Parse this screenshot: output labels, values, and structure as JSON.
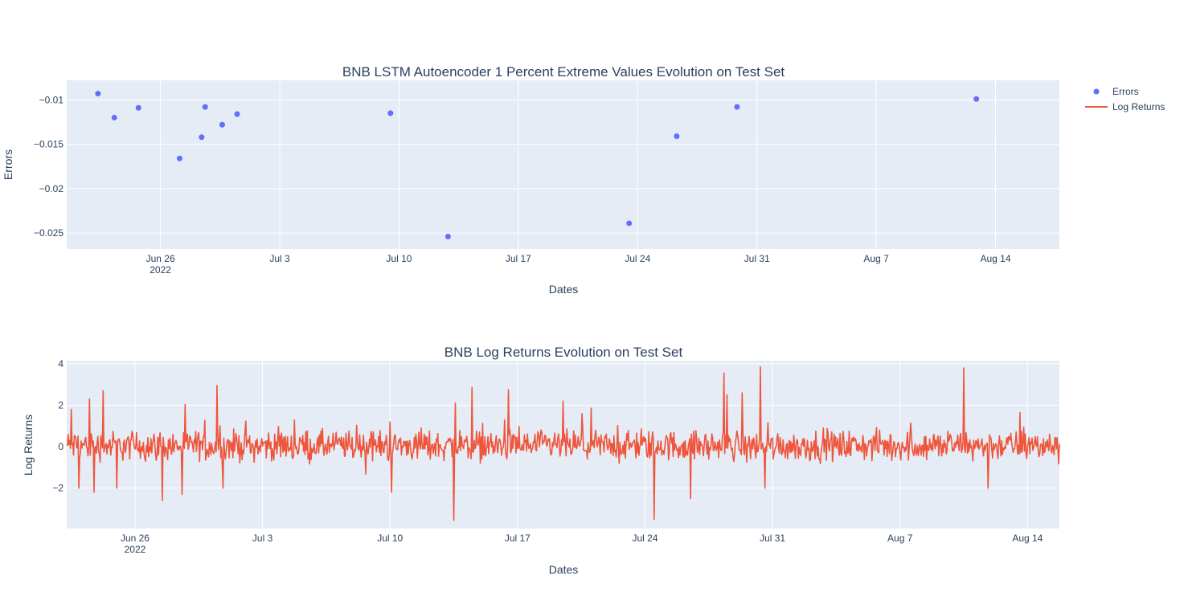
{
  "chart_data": [
    {
      "type": "scatter",
      "title": "BNB LSTM Autoencoder 1 Percent Extreme Values Evolution on Test Set",
      "xlabel": "Dates",
      "ylabel": "Errors",
      "x_range": [
        "2022-06-20T12:00",
        "2022-08-17T18:00"
      ],
      "ylim": [
        -0.0268,
        -0.0078
      ],
      "x_ticks": [
        {
          "date": "2022-06-26",
          "label": "Jun 26",
          "sub": "2022"
        },
        {
          "date": "2022-07-03",
          "label": "Jul 3",
          "sub": ""
        },
        {
          "date": "2022-07-10",
          "label": "Jul 10",
          "sub": ""
        },
        {
          "date": "2022-07-17",
          "label": "Jul 17",
          "sub": ""
        },
        {
          "date": "2022-07-24",
          "label": "Jul 24",
          "sub": ""
        },
        {
          "date": "2022-07-31",
          "label": "Jul 31",
          "sub": ""
        },
        {
          "date": "2022-08-07",
          "label": "Aug 7",
          "sub": ""
        },
        {
          "date": "2022-08-14",
          "label": "Aug 14",
          "sub": ""
        }
      ],
      "y_ticks": [
        -0.01,
        -0.015,
        -0.02,
        -0.025
      ],
      "y_tick_labels": [
        "−0.01",
        "−0.015",
        "−0.02",
        "−0.025"
      ],
      "series": [
        {
          "name": "Errors",
          "color": "#636efa",
          "points": [
            {
              "x": "2022-06-22T08:00",
              "y": -0.0093
            },
            {
              "x": "2022-06-23T07:00",
              "y": -0.012
            },
            {
              "x": "2022-06-24T17:00",
              "y": -0.0109
            },
            {
              "x": "2022-06-27T03:00",
              "y": -0.0166
            },
            {
              "x": "2022-06-28T10:00",
              "y": -0.0142
            },
            {
              "x": "2022-06-28T15:00",
              "y": -0.0108
            },
            {
              "x": "2022-06-29T15:00",
              "y": -0.0128
            },
            {
              "x": "2022-06-30T12:00",
              "y": -0.0116
            },
            {
              "x": "2022-07-09T12:00",
              "y": -0.0115
            },
            {
              "x": "2022-07-12T21:00",
              "y": -0.0254
            },
            {
              "x": "2022-07-23T12:00",
              "y": -0.0239
            },
            {
              "x": "2022-07-26T07:00",
              "y": -0.0141
            },
            {
              "x": "2022-07-29T20:00",
              "y": -0.0108
            },
            {
              "x": "2022-08-12T21:00",
              "y": -0.0099
            }
          ]
        }
      ],
      "legend": {
        "position": "top-right",
        "entries": [
          {
            "name": "Errors",
            "marker": "dot",
            "color": "#636efa"
          },
          {
            "name": "Log Returns",
            "marker": "line",
            "color": "#ef553b"
          }
        ]
      }
    },
    {
      "type": "line",
      "title": "BNB Log Returns Evolution on Test Set",
      "xlabel": "Dates",
      "ylabel": "Log Returns",
      "x_range": [
        "2022-06-22T06:00",
        "2022-08-15T18:00"
      ],
      "ylim": [
        -3.95,
        4.15
      ],
      "x_ticks": [
        {
          "date": "2022-06-26",
          "label": "Jun 26",
          "sub": "2022"
        },
        {
          "date": "2022-07-03",
          "label": "Jul 3",
          "sub": ""
        },
        {
          "date": "2022-07-10",
          "label": "Jul 10",
          "sub": ""
        },
        {
          "date": "2022-07-17",
          "label": "Jul 17",
          "sub": ""
        },
        {
          "date": "2022-07-24",
          "label": "Jul 24",
          "sub": ""
        },
        {
          "date": "2022-07-31",
          "label": "Jul 31",
          "sub": ""
        },
        {
          "date": "2022-08-07",
          "label": "Aug 7",
          "sub": ""
        },
        {
          "date": "2022-08-14",
          "label": "Aug 14",
          "sub": ""
        }
      ],
      "y_ticks": [
        4,
        2,
        0,
        -2
      ],
      "y_tick_labels": [
        "4",
        "2",
        "0",
        "−2"
      ],
      "series": [
        {
          "name": "Log Returns",
          "color": "#ef553b",
          "sampling": "hourly",
          "start": "2022-06-22T06:00",
          "end": "2022-08-15T18:00",
          "typical_range": [
            -0.8,
            0.8
          ],
          "spikes": [
            {
              "x": "2022-06-22T22:00",
              "y": -2.0
            },
            {
              "x": "2022-06-22T12:00",
              "y": 1.8
            },
            {
              "x": "2022-06-23T12:00",
              "y": 2.3
            },
            {
              "x": "2022-06-23T18:00",
              "y": -2.2
            },
            {
              "x": "2022-06-24T06:00",
              "y": 2.7
            },
            {
              "x": "2022-06-25T00:00",
              "y": -2.0
            },
            {
              "x": "2022-06-27T12:00",
              "y": -2.6
            },
            {
              "x": "2022-06-28T14:00",
              "y": -2.3
            },
            {
              "x": "2022-06-30T12:00",
              "y": 2.95
            },
            {
              "x": "2022-06-30T20:00",
              "y": -2.0
            },
            {
              "x": "2022-07-10T02:00",
              "y": -2.2
            },
            {
              "x": "2022-07-13T12:00",
              "y": -3.55
            },
            {
              "x": "2022-07-13T14:00",
              "y": 2.1
            },
            {
              "x": "2022-07-14T12:00",
              "y": 2.85
            },
            {
              "x": "2022-07-16T12:00",
              "y": 2.75
            },
            {
              "x": "2022-07-19T12:00",
              "y": 2.2
            },
            {
              "x": "2022-07-24T12:00",
              "y": -3.5
            },
            {
              "x": "2022-07-26T12:00",
              "y": -2.5
            },
            {
              "x": "2022-07-28T08:00",
              "y": 3.55
            },
            {
              "x": "2022-07-28T12:00",
              "y": 2.5
            },
            {
              "x": "2022-07-29T08:00",
              "y": 2.6
            },
            {
              "x": "2022-07-30T08:00",
              "y": 3.85
            },
            {
              "x": "2022-07-30T14:00",
              "y": -2.0
            },
            {
              "x": "2022-08-10T12:00",
              "y": 3.8
            },
            {
              "x": "2022-08-11T20:00",
              "y": -2.0
            },
            {
              "x": "2022-08-13T14:00",
              "y": 1.65
            }
          ]
        }
      ]
    }
  ]
}
